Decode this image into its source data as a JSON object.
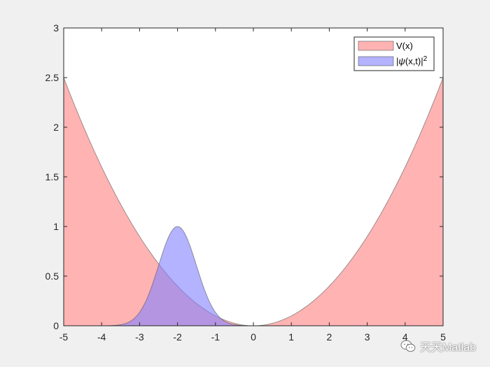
{
  "chart_data": {
    "type": "area",
    "title": "",
    "xlabel": "",
    "ylabel": "",
    "xlim": [
      -5,
      5
    ],
    "ylim": [
      0,
      3
    ],
    "x_ticks": [
      "-5",
      "-4",
      "-3",
      "-2",
      "-1",
      "0",
      "1",
      "2",
      "3",
      "4",
      "5"
    ],
    "y_ticks": [
      "0",
      "0.5",
      "1",
      "1.5",
      "2",
      "2.5",
      "3"
    ],
    "grid": false,
    "legend_position": "top-right",
    "series": [
      {
        "name": "V(x)",
        "description": "parabolic potential V = 0.1 x^2",
        "color": "#ff8080",
        "x": [
          -5,
          -4.5,
          -4,
          -3.5,
          -3,
          -2.5,
          -2,
          -1.5,
          -1,
          -0.5,
          0,
          0.5,
          1,
          1.5,
          2,
          2.5,
          3,
          3.5,
          4,
          4.5,
          5
        ],
        "values": [
          2.5,
          2.025,
          1.6,
          1.225,
          0.9,
          0.625,
          0.4,
          0.225,
          0.1,
          0.025,
          0,
          0.025,
          0.1,
          0.225,
          0.4,
          0.625,
          0.9,
          1.225,
          1.6,
          2.025,
          2.5
        ]
      },
      {
        "name": "|ψ(x,t)|²",
        "description": "gaussian wave packet centred at x = -2",
        "color": "#8080ff",
        "x": [
          -3.5,
          -3.25,
          -3,
          -2.75,
          -2.5,
          -2.25,
          -2,
          -1.75,
          -1.5,
          -1.25,
          -1,
          -0.75,
          -0.5
        ],
        "values": [
          0.011,
          0.044,
          0.135,
          0.325,
          0.607,
          0.882,
          1.0,
          0.882,
          0.607,
          0.325,
          0.135,
          0.044,
          0.011
        ]
      }
    ]
  },
  "legend": {
    "items": [
      {
        "label": "V(x)",
        "color": "#ff8080"
      },
      {
        "label_prefix": "|",
        "label_psi": "ψ",
        "label_mid": "(x,t)|",
        "label_sup": "2",
        "color": "#8080ff"
      }
    ]
  },
  "watermark": {
    "text": "天天Matlab",
    "icon": "wechat-icon"
  }
}
